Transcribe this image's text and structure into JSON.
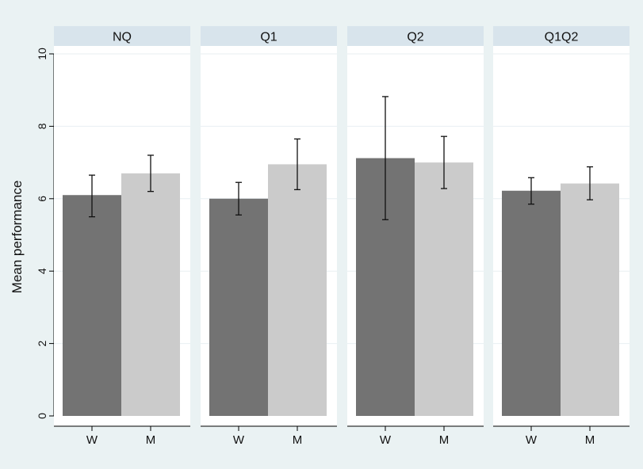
{
  "chart_data": {
    "type": "bar",
    "ylabel": "Mean performance",
    "ylim": [
      0,
      10
    ],
    "yticks": [
      0,
      2,
      4,
      6,
      8,
      10
    ],
    "grid": true,
    "series_colors": {
      "W": "#737373",
      "M": "#cbcbcb"
    },
    "panels": [
      {
        "title": "NQ",
        "categories": [
          "W",
          "M"
        ],
        "values": [
          6.1,
          6.7
        ],
        "ci_low": [
          5.5,
          6.2
        ],
        "ci_high": [
          6.65,
          7.2
        ]
      },
      {
        "title": "Q1",
        "categories": [
          "W",
          "M"
        ],
        "values": [
          6.0,
          6.95
        ],
        "ci_low": [
          5.55,
          6.25
        ],
        "ci_high": [
          6.45,
          7.65
        ]
      },
      {
        "title": "Q2",
        "categories": [
          "W",
          "M"
        ],
        "values": [
          7.12,
          7.0
        ],
        "ci_low": [
          5.42,
          6.28
        ],
        "ci_high": [
          8.82,
          7.72
        ]
      },
      {
        "title": "Q1Q2",
        "categories": [
          "W",
          "M"
        ],
        "values": [
          6.22,
          6.42
        ],
        "ci_low": [
          5.85,
          5.97
        ],
        "ci_high": [
          6.58,
          6.88
        ]
      }
    ]
  },
  "colors": {
    "figure_bg": "#eaf2f3",
    "panel_bg": "#ffffff",
    "panel_header": "#d8e4ec",
    "grid": "#e8eff2",
    "axis": "#000000"
  }
}
